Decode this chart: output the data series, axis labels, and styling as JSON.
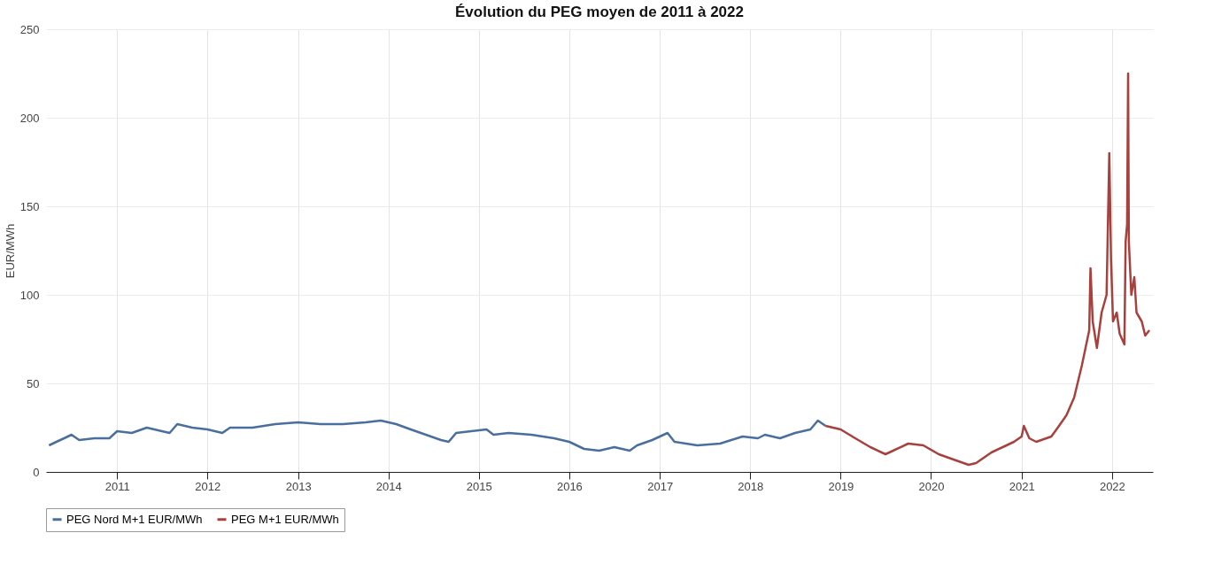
{
  "chart_data": {
    "type": "line",
    "title": "Évolution du PEG moyen de 2011 à 2022",
    "ylabel": "EUR/MWh",
    "xlim": [
      "2010-03-20",
      "2022-06-15"
    ],
    "xticks": [
      "2011",
      "2012",
      "2013",
      "2014",
      "2015",
      "2016",
      "2017",
      "2018",
      "2019",
      "2020",
      "2021",
      "2022"
    ],
    "ylim": [
      0,
      250
    ],
    "yticks": [
      0,
      50,
      100,
      150,
      200,
      250
    ],
    "grid": true,
    "legend": "bottom",
    "line_style": "solid",
    "marker": "none",
    "series": [
      {
        "name": "PEG Nord M+1 EUR/MWh",
        "color": "#4a6f9e",
        "x": [
          "2010-04",
          "2010-05",
          "2010-06",
          "2010-07",
          "2010-08",
          "2010-10",
          "2010-12",
          "2011-01",
          "2011-03",
          "2011-05",
          "2011-07",
          "2011-08",
          "2011-09",
          "2011-11",
          "2012-01",
          "2012-03",
          "2012-04",
          "2012-07",
          "2012-10",
          "2013-01",
          "2013-04",
          "2013-07",
          "2013-10",
          "2013-12",
          "2014-02",
          "2014-04",
          "2014-06",
          "2014-08",
          "2014-09",
          "2014-10",
          "2014-12",
          "2015-02",
          "2015-03",
          "2015-05",
          "2015-08",
          "2015-11",
          "2016-01",
          "2016-03",
          "2016-05",
          "2016-07",
          "2016-09",
          "2016-10",
          "2016-12",
          "2017-02",
          "2017-03",
          "2017-06",
          "2017-09",
          "2017-12",
          "2018-02",
          "2018-03",
          "2018-05",
          "2018-07",
          "2018-09",
          "2018-10",
          "2018-11"
        ],
        "values": [
          15,
          17,
          19,
          21,
          18,
          19,
          19,
          23,
          22,
          25,
          23,
          22,
          27,
          25,
          24,
          22,
          25,
          25,
          27,
          28,
          27,
          27,
          28,
          29,
          27,
          24,
          21,
          18,
          17,
          22,
          23,
          24,
          21,
          22,
          21,
          19,
          17,
          13,
          12,
          14,
          12,
          15,
          18,
          22,
          17,
          15,
          16,
          20,
          19,
          21,
          19,
          22,
          24,
          29,
          26
        ]
      },
      {
        "name": "PEG M+1 EUR/MWh",
        "color": "#a8413d",
        "x": [
          "2018-11",
          "2019-01",
          "2019-03",
          "2019-05",
          "2019-07",
          "2019-08",
          "2019-10",
          "2019-12",
          "2020-02",
          "2020-04",
          "2020-06",
          "2020-07",
          "2020-09",
          "2020-11",
          "2020-12",
          "2021-01",
          "2021-01-10",
          "2021-02",
          "2021-03",
          "2021-05",
          "2021-06",
          "2021-07",
          "2021-08",
          "2021-09",
          "2021-10-01",
          "2021-10-06",
          "2021-10-15",
          "2021-11-01",
          "2021-11-20",
          "2021-12-10",
          "2021-12-21",
          "2021-12-28",
          "2022-01-05",
          "2022-01-20",
          "2022-02-01",
          "2022-02-20",
          "2022-02-25",
          "2022-03-03",
          "2022-03-07",
          "2022-03-10",
          "2022-03-20",
          "2022-04-01",
          "2022-04-10",
          "2022-05-01",
          "2022-05-15",
          "2022-06-01"
        ],
        "values": [
          26,
          24,
          19,
          14,
          10,
          12,
          16,
          15,
          10,
          7,
          4,
          5,
          11,
          15,
          17,
          20,
          26,
          19,
          17,
          20,
          26,
          32,
          42,
          60,
          80,
          115,
          85,
          70,
          90,
          100,
          180,
          120,
          85,
          90,
          78,
          72,
          130,
          140,
          225,
          130,
          100,
          110,
          90,
          85,
          77,
          80
        ]
      }
    ]
  }
}
